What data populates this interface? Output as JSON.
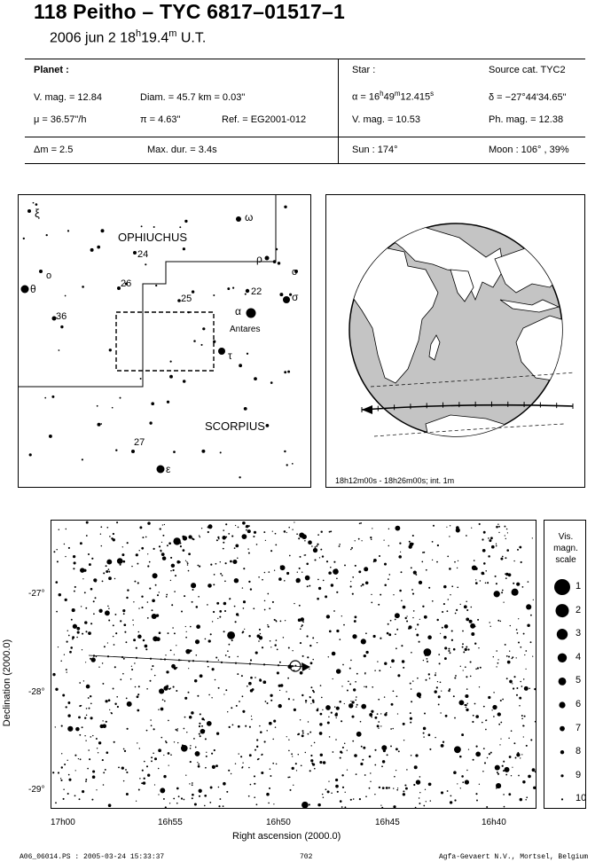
{
  "header": {
    "title": "118 Peitho  –  TYC 6817–01517–1",
    "date": "2006 jun  2  18",
    "time_h": "h",
    "time_min": "19.4",
    "time_m": "m",
    "time_ut": " U.T."
  },
  "planet": {
    "heading": "Planet :",
    "vmag": "V. mag. = 12.84",
    "diam": "Diam. = 45.7 km = 0.03\"",
    "mu": "μ =  36.57\"/h",
    "pi": "π =  4.63\"",
    "ref": "Ref. = EG2001-012",
    "dm": "Δm = 2.5",
    "maxdur": "Max. dur. = 3.4s"
  },
  "star": {
    "heading": "Star :",
    "source": "Source cat.  TYC2",
    "ra_prefix": "α = 16",
    "ra_h": "h",
    "ra_min": "49",
    "ra_m": "m",
    "ra_sec": "12.415",
    "ra_s": "s",
    "dec": "δ = −27°44'34.65\"",
    "vmag": "V. mag. = 10.53",
    "phmag": "Ph. mag. = 12.38",
    "sun": "Sun : 174°",
    "moon": "Moon : 106° , 39%"
  },
  "finder": {
    "constellation_top": "OPHIUCHUS",
    "constellation_bottom": "SCORPIUS",
    "antares": "Antares",
    "star_labels": {
      "xi": "ξ",
      "omega": "ω",
      "rho": "ρ",
      "omicron_r": "o",
      "omicron_l": "o",
      "theta": "θ",
      "sigma": "σ",
      "alpha": "α",
      "tau": "τ",
      "epsilon": "ε",
      "n24": "24",
      "n26": "26",
      "n25": "25",
      "n22": "22",
      "n36": "36",
      "n27": "27"
    }
  },
  "globe": {
    "caption": "18h12m00s - 18h26m00s; int.  1m"
  },
  "starchart": {
    "ylabel": "Declination (2000.0)",
    "xlabel": "Right ascension (2000.0)",
    "yticks": [
      "-27°",
      "-28°",
      "-29°"
    ],
    "xticks": [
      "17h00",
      "16h55",
      "16h50",
      "16h45",
      "16h40"
    ]
  },
  "scale": {
    "title1": "Vis.",
    "title2": "magn.",
    "title3": "scale",
    "levels": [
      "1",
      "2",
      "3",
      "4",
      "5",
      "6",
      "7",
      "8",
      "9",
      "10"
    ]
  },
  "footer": {
    "left": "A06_06014.PS : 2005-03-24 15:33:37",
    "center": "702",
    "right": "Agfa-Gevaert N.V., Mortsel, Belgium"
  }
}
